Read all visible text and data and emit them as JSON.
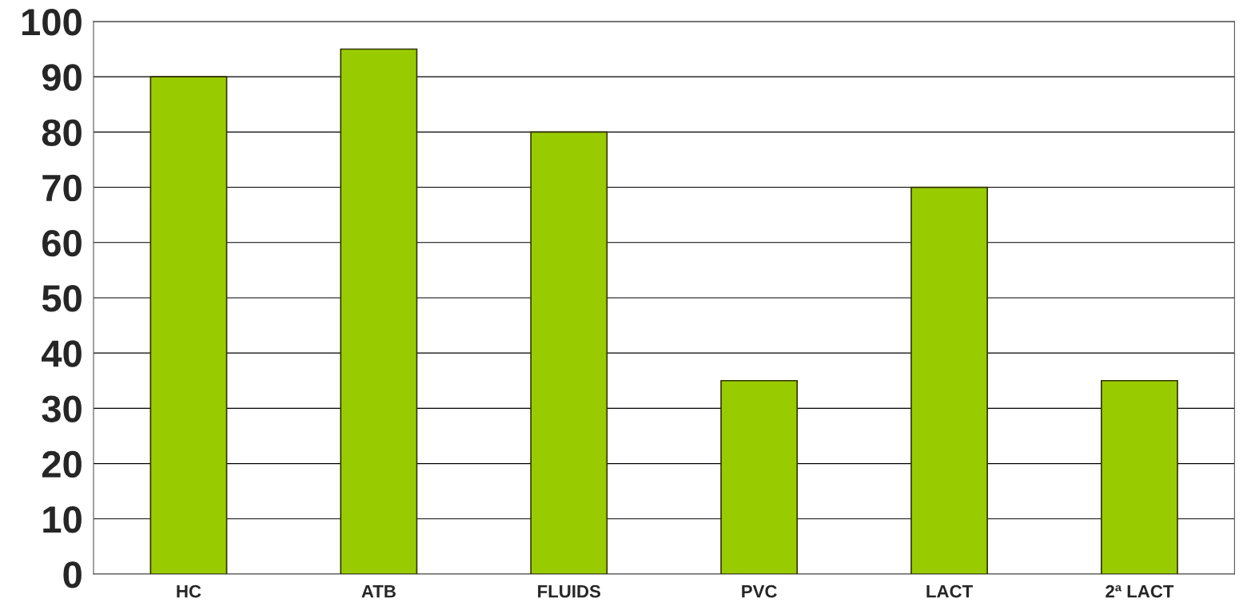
{
  "chart_data": {
    "type": "bar",
    "categories": [
      "HC",
      "ATB",
      "FLUIDS",
      "PVC",
      "LACT",
      "2ª LACT"
    ],
    "values": [
      90,
      95,
      80,
      35,
      70,
      35
    ],
    "color": "#99cc00",
    "ylim": [
      0,
      100
    ],
    "yticks": [
      0,
      10,
      20,
      30,
      40,
      50,
      60,
      70,
      80,
      90,
      100
    ],
    "grid": "y"
  }
}
